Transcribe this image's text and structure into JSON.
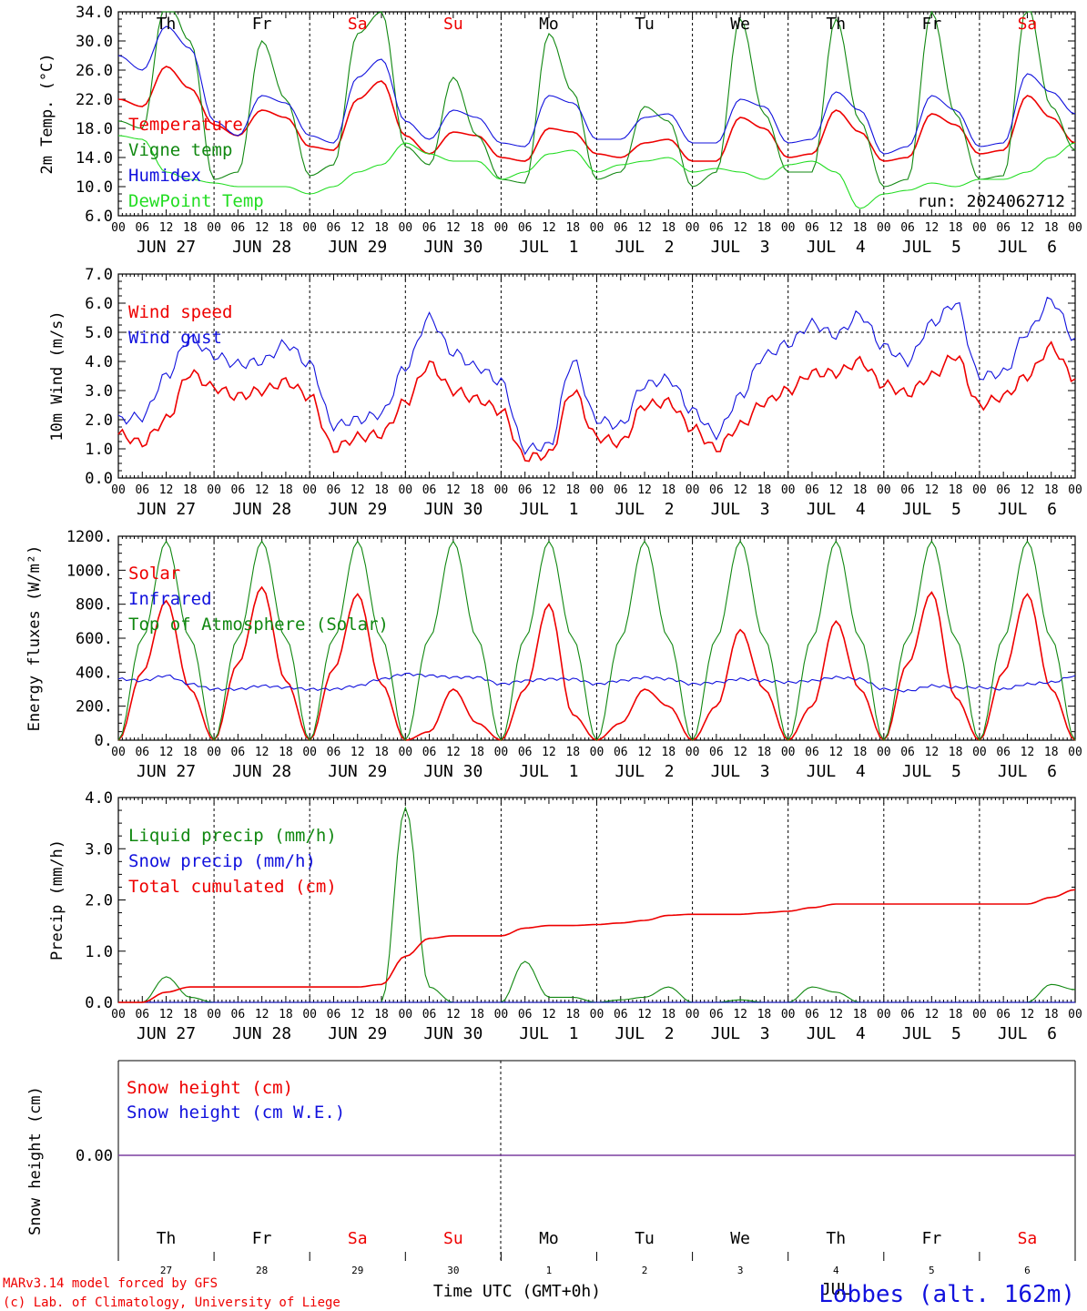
{
  "colors": {
    "red": "#ee0000",
    "green": "#118811",
    "blue": "#1111dd",
    "lime": "#22dd22",
    "purple": "#7b3fa0",
    "black": "#000000"
  },
  "days_top": [
    "Th",
    "Fr",
    "Sa",
    "Su",
    "Mo",
    "Tu",
    "We",
    "Th",
    "Fr",
    "Sa"
  ],
  "days_top_weekend": [
    false,
    false,
    true,
    true,
    false,
    false,
    false,
    false,
    false,
    true
  ],
  "day_dates": [
    "JUN 27",
    "JUN 28",
    "JUN 29",
    "JUN 30",
    "JUL  1",
    "JUL  2",
    "JUL  3",
    "JUL  4",
    "JUL  5",
    "JUL  6"
  ],
  "hour_ticks": [
    "00",
    "06",
    "12",
    "18"
  ],
  "hour_end": "00",
  "bottom_day_numbers": [
    "27",
    "28",
    "29",
    "30",
    "1",
    "2",
    "3",
    "4",
    "5",
    "6"
  ],
  "bottom_month_label": "JUL",
  "footer": {
    "model": "MARv3.14 model forced by GFS",
    "lab": "(c) Lab. of Climatology, University of Liege",
    "xlabel": "Time UTC (GMT+0h)",
    "station": "Lobbes (alt. 162m)"
  },
  "chart_data": [
    {
      "type": "line",
      "ylabel": "2m Temp. (°C)",
      "ylim": [
        6,
        34
      ],
      "yticks": [
        "6.0",
        "10.0",
        "14.0",
        "18.0",
        "22.0",
        "26.0",
        "30.0",
        "34.0"
      ],
      "run_label": "run: 2024062712",
      "x": "hours from 2024-06-27 00 UTC, 6-hourly, 0 to 240",
      "series": [
        {
          "name": "Temperature",
          "color": "red",
          "values": [
            22.0,
            21.0,
            26.5,
            23.5,
            18.5,
            17.0,
            20.5,
            19.5,
            15.5,
            15.0,
            22.0,
            24.5,
            17.0,
            14.5,
            17.5,
            17.0,
            14.0,
            13.5,
            18.0,
            17.5,
            14.5,
            14.0,
            16.0,
            16.5,
            13.5,
            13.5,
            19.5,
            18.0,
            14.0,
            14.5,
            20.5,
            17.5,
            13.5,
            14.0,
            20.0,
            18.5,
            14.5,
            15.0,
            22.5,
            19.5,
            16.0
          ]
        },
        {
          "name": "Vigne temp",
          "color": "green",
          "values": [
            19.0,
            18.0,
            36.0,
            30.0,
            11.0,
            12.0,
            30.0,
            22.0,
            11.5,
            13.0,
            31.0,
            34.0,
            15.5,
            13.0,
            25.0,
            17.0,
            11.0,
            10.5,
            31.0,
            23.0,
            11.0,
            12.0,
            21.0,
            19.0,
            10.0,
            12.0,
            33.0,
            20.0,
            12.0,
            12.0,
            33.0,
            19.0,
            10.0,
            11.0,
            34.0,
            20.0,
            11.0,
            11.5,
            35.0,
            21.0,
            15.0
          ]
        },
        {
          "name": "Humidex",
          "color": "blue",
          "values": [
            28.0,
            26.0,
            32.0,
            29.0,
            19.0,
            17.0,
            22.5,
            21.5,
            17.0,
            16.0,
            25.0,
            27.5,
            19.0,
            16.5,
            20.5,
            19.5,
            16.0,
            15.5,
            22.5,
            21.5,
            16.5,
            16.5,
            19.5,
            20.0,
            16.0,
            16.0,
            22.0,
            21.0,
            16.0,
            16.5,
            23.0,
            20.5,
            14.5,
            15.5,
            22.5,
            20.5,
            15.5,
            16.0,
            25.5,
            23.0,
            20.0
          ]
        },
        {
          "name": "DewPoint Temp",
          "color": "lime",
          "values": [
            17.0,
            16.5,
            12.0,
            11.0,
            10.5,
            10.0,
            10.0,
            10.0,
            9.0,
            10.0,
            12.0,
            13.0,
            16.0,
            14.5,
            13.5,
            13.5,
            11.0,
            12.0,
            14.5,
            15.0,
            12.0,
            13.0,
            13.5,
            14.0,
            12.0,
            12.5,
            12.0,
            11.0,
            13.0,
            13.5,
            12.0,
            7.0,
            9.0,
            9.5,
            10.5,
            10.0,
            11.0,
            11.0,
            12.0,
            14.0,
            16.0
          ]
        }
      ]
    },
    {
      "type": "line",
      "ylabel": "10m Wind (m/s)",
      "ylim": [
        0,
        7
      ],
      "yticks": [
        "0.0",
        "1.0",
        "2.0",
        "3.0",
        "4.0",
        "5.0",
        "6.0",
        "7.0"
      ],
      "reference_line": 5,
      "x": "hours from 2024-06-27 00 UTC, 6-hourly, 0 to 240",
      "series": [
        {
          "name": "Wind speed",
          "color": "red",
          "values": [
            1.5,
            1.2,
            2.0,
            3.6,
            3.1,
            2.8,
            3.0,
            3.3,
            2.8,
            1.0,
            1.4,
            1.5,
            2.6,
            3.9,
            3.0,
            2.7,
            2.3,
            0.7,
            0.8,
            3.0,
            1.4,
            1.2,
            2.5,
            2.6,
            1.7,
            1.0,
            1.8,
            2.6,
            3.0,
            3.6,
            3.6,
            4.0,
            3.2,
            2.9,
            3.5,
            4.2,
            2.5,
            2.8,
            3.5,
            4.5,
            3.4
          ]
        },
        {
          "name": "Wind gust",
          "color": "blue",
          "values": [
            2.0,
            2.1,
            3.5,
            4.8,
            4.2,
            3.9,
            4.0,
            4.6,
            3.9,
            1.8,
            2.0,
            2.2,
            3.8,
            5.5,
            4.3,
            3.8,
            3.3,
            1.0,
            1.1,
            4.0,
            2.0,
            1.8,
            3.2,
            3.4,
            2.3,
            1.5,
            2.8,
            4.2,
            4.6,
            5.3,
            4.9,
            5.6,
            4.5,
            4.0,
            5.3,
            6.0,
            3.5,
            3.6,
            5.0,
            6.1,
            4.8
          ]
        }
      ]
    },
    {
      "type": "line",
      "ylabel": "Energy fluxes (W/m²)",
      "ylim": [
        0,
        1200
      ],
      "yticks": [
        "0.",
        "200.",
        "400.",
        "600.",
        "800.",
        "1000.",
        "1200."
      ],
      "x": "hours from 2024-06-27 00 UTC, 6-hourly, 0 to 240",
      "series": [
        {
          "name": "Solar",
          "color": "red",
          "values": [
            0,
            400,
            820,
            300,
            0,
            450,
            900,
            350,
            0,
            420,
            860,
            330,
            0,
            50,
            300,
            100,
            0,
            300,
            800,
            150,
            0,
            100,
            300,
            200,
            0,
            200,
            650,
            300,
            0,
            200,
            700,
            300,
            0,
            450,
            870,
            250,
            0,
            400,
            860,
            300,
            0
          ]
        },
        {
          "name": "Infrared",
          "color": "blue",
          "values": [
            360,
            350,
            380,
            330,
            300,
            300,
            320,
            310,
            300,
            300,
            320,
            360,
            390,
            380,
            370,
            370,
            330,
            350,
            360,
            360,
            330,
            350,
            370,
            360,
            330,
            340,
            360,
            350,
            340,
            350,
            370,
            360,
            300,
            290,
            320,
            310,
            310,
            300,
            330,
            340,
            380
          ]
        },
        {
          "name": "Top of Atmosphere (Solar)",
          "color": "green",
          "values": [
            0,
            600,
            1170,
            600,
            0,
            600,
            1170,
            600,
            0,
            600,
            1170,
            600,
            0,
            600,
            1170,
            600,
            0,
            600,
            1170,
            600,
            0,
            600,
            1170,
            600,
            0,
            600,
            1170,
            600,
            0,
            600,
            1170,
            600,
            0,
            600,
            1170,
            600,
            0,
            600,
            1170,
            600,
            0
          ]
        }
      ]
    },
    {
      "type": "line",
      "ylabel": "Precip (mm/h)",
      "ylim": [
        0,
        4
      ],
      "yticks": [
        "0.0",
        "1.0",
        "2.0",
        "3.0",
        "4.0"
      ],
      "x": "hours from 2024-06-27 00 UTC, 6-hourly, 0 to 240",
      "series": [
        {
          "name": "Liquid precip (mm/h)",
          "color": "green",
          "values": [
            0,
            0,
            0.5,
            0.1,
            0,
            0,
            0,
            0,
            0,
            0,
            0,
            0,
            3.8,
            0.3,
            0,
            0,
            0,
            0.8,
            0.1,
            0.1,
            0,
            0.05,
            0.1,
            0.3,
            0,
            0,
            0.05,
            0,
            0,
            0.3,
            0.2,
            0,
            0,
            0,
            0,
            0,
            0,
            0,
            0,
            0.35,
            0.25
          ]
        },
        {
          "name": "Snow precip (mm/h)",
          "color": "blue",
          "values": [
            0,
            0,
            0,
            0,
            0,
            0,
            0,
            0,
            0,
            0,
            0,
            0,
            0,
            0,
            0,
            0,
            0,
            0,
            0,
            0,
            0,
            0,
            0,
            0,
            0,
            0,
            0,
            0,
            0,
            0,
            0,
            0,
            0,
            0,
            0,
            0,
            0,
            0,
            0,
            0,
            0
          ]
        },
        {
          "name": "Total cumulated (cm)",
          "color": "red",
          "values": [
            0,
            0,
            0.2,
            0.3,
            0.3,
            0.3,
            0.3,
            0.3,
            0.3,
            0.3,
            0.3,
            0.35,
            0.9,
            1.25,
            1.3,
            1.3,
            1.3,
            1.45,
            1.5,
            1.5,
            1.52,
            1.55,
            1.6,
            1.7,
            1.72,
            1.72,
            1.72,
            1.75,
            1.78,
            1.85,
            1.92,
            1.92,
            1.92,
            1.92,
            1.92,
            1.92,
            1.92,
            1.92,
            1.92,
            2.05,
            2.2
          ]
        }
      ]
    },
    {
      "type": "line",
      "ylabel": "Snow height (cm)",
      "yticks": [
        "0.00"
      ],
      "series": [
        {
          "name": "Snow height (cm)",
          "color": "red",
          "values": [
            0,
            0
          ]
        },
        {
          "name": "Snow height (cm W.E.)",
          "color": "blue",
          "values": [
            0,
            0
          ]
        }
      ]
    }
  ]
}
